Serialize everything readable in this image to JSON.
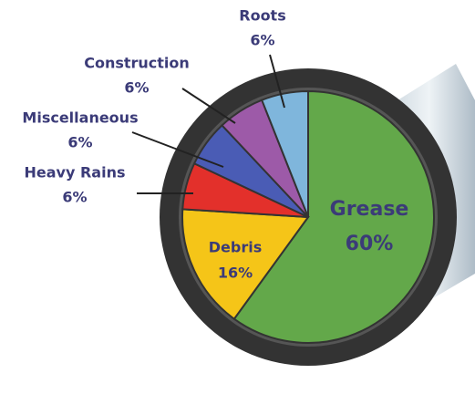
{
  "chart_data": {
    "type": "pie",
    "categories": [
      "Grease",
      "Debris",
      "Heavy Rains",
      "Miscellaneous",
      "Construction",
      "Roots"
    ],
    "values": [
      60,
      16,
      6,
      6,
      6,
      6
    ],
    "value_labels": [
      "60%",
      "16%",
      "6%",
      "6%",
      "6%",
      "6%"
    ],
    "colors": [
      "#63a84a",
      "#f5c518",
      "#e3302b",
      "#4a5cb5",
      "#9d5aa8",
      "#7fb6dc"
    ]
  }
}
